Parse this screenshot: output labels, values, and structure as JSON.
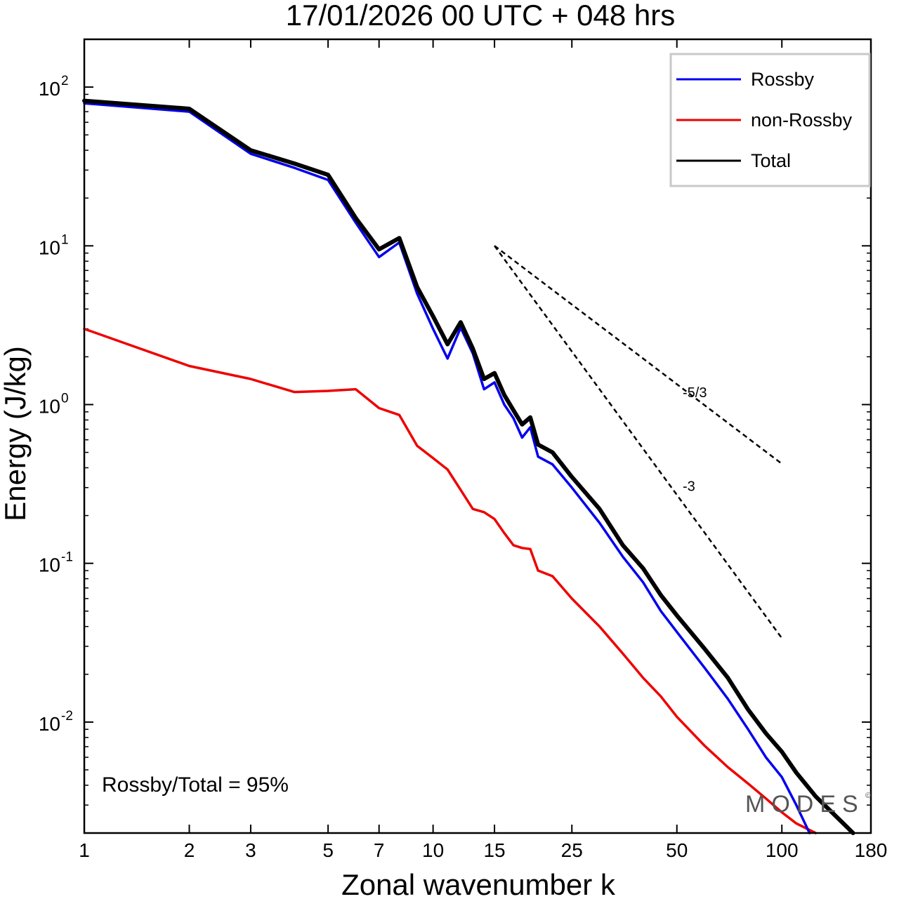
{
  "chart_data": {
    "type": "line",
    "title": "17/01/2026  00 UTC  + 048 hrs",
    "xlabel": "Zonal wavenumber k",
    "ylabel": "Energy (J/kg)",
    "xscale": "log",
    "yscale": "log",
    "xlim": [
      1,
      180
    ],
    "ylim": [
      0.002,
      200
    ],
    "xticks": [
      1,
      2,
      3,
      5,
      7,
      10,
      15,
      25,
      50,
      100,
      180
    ],
    "xtick_labels": [
      "1",
      "2",
      "3",
      "5",
      "7",
      "10",
      "15",
      "25",
      "50",
      "100",
      "180"
    ],
    "yticks": [
      {
        "base": "10",
        "exp": "-2",
        "value": 0.01
      },
      {
        "base": "10",
        "exp": "-1",
        "value": 0.1
      },
      {
        "base": "10",
        "exp": "0",
        "value": 1
      },
      {
        "base": "10",
        "exp": "1",
        "value": 10
      },
      {
        "base": "10",
        "exp": "2",
        "value": 100
      }
    ],
    "legend_position": "top-right",
    "series": [
      {
        "name": "Rossby",
        "color": "#0000ee",
        "x": [
          1,
          2,
          3,
          4,
          5,
          6,
          7,
          8,
          9,
          10,
          11,
          12,
          13,
          14,
          15,
          16,
          17,
          18,
          19,
          20,
          22,
          25,
          30,
          35,
          40,
          45,
          50,
          60,
          70,
          80,
          90,
          100,
          110,
          120
        ],
        "values": [
          79,
          70,
          38,
          31,
          26,
          14,
          8.5,
          10.5,
          5,
          3,
          1.95,
          3.05,
          2.1,
          1.25,
          1.38,
          1.0,
          0.82,
          0.62,
          0.72,
          0.47,
          0.42,
          0.3,
          0.18,
          0.11,
          0.076,
          0.05,
          0.037,
          0.022,
          0.014,
          0.009,
          0.006,
          0.0045,
          0.003,
          0.002
        ]
      },
      {
        "name": "non-Rossby",
        "color": "#ee0000",
        "x": [
          1,
          2,
          3,
          4,
          5,
          6,
          7,
          8,
          9,
          10,
          11,
          12,
          13,
          14,
          15,
          16,
          17,
          18,
          19,
          20,
          22,
          25,
          30,
          35,
          40,
          45,
          50,
          60,
          70,
          80,
          90,
          100,
          110,
          125
        ],
        "values": [
          3.0,
          1.75,
          1.45,
          1.2,
          1.22,
          1.25,
          0.95,
          0.86,
          0.55,
          0.46,
          0.39,
          0.29,
          0.22,
          0.21,
          0.19,
          0.155,
          0.13,
          0.125,
          0.123,
          0.09,
          0.083,
          0.06,
          0.04,
          0.027,
          0.019,
          0.0145,
          0.0108,
          0.0071,
          0.0052,
          0.0041,
          0.0033,
          0.0027,
          0.0023,
          0.002
        ]
      },
      {
        "name": "Total",
        "color": "#000000",
        "x": [
          1,
          2,
          3,
          4,
          5,
          6,
          7,
          8,
          9,
          10,
          11,
          12,
          13,
          14,
          15,
          16,
          17,
          18,
          19,
          20,
          22,
          25,
          30,
          35,
          40,
          45,
          50,
          60,
          70,
          80,
          90,
          100,
          110,
          125,
          150,
          160
        ],
        "values": [
          82,
          73,
          40,
          33,
          28,
          15,
          9.5,
          11.2,
          5.5,
          3.6,
          2.4,
          3.3,
          2.25,
          1.45,
          1.58,
          1.15,
          0.92,
          0.75,
          0.83,
          0.56,
          0.5,
          0.35,
          0.22,
          0.13,
          0.093,
          0.063,
          0.047,
          0.029,
          0.019,
          0.012,
          0.0085,
          0.0065,
          0.0048,
          0.0034,
          0.0023,
          0.002
        ]
      }
    ],
    "reference_lines": [
      {
        "label": "-5/3",
        "slope": -1.6667,
        "x": [
          15,
          100
        ],
        "y0": 10
      },
      {
        "label": "-3",
        "slope": -3,
        "x": [
          15,
          100
        ],
        "y0": 10
      }
    ],
    "annotation": "Rossby/Total = 95%"
  },
  "watermark": "MODES",
  "watermark_mark": "©"
}
